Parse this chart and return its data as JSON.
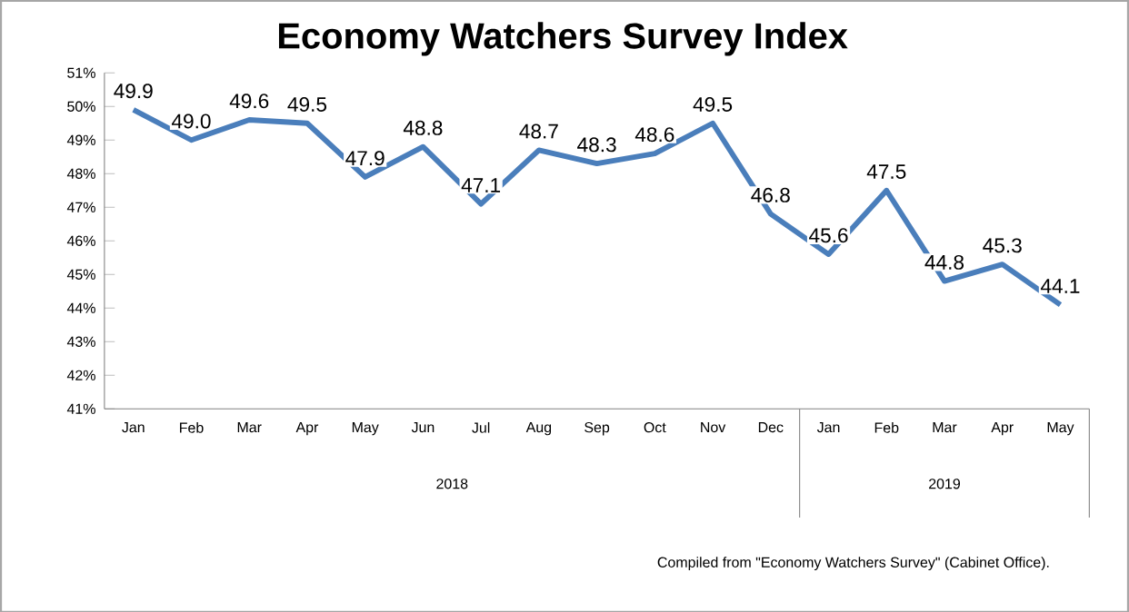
{
  "chart_data": {
    "type": "line",
    "title": "Economy Watchers Survey Index",
    "categories": [
      "Jan",
      "Feb",
      "Mar",
      "Apr",
      "May",
      "Jun",
      "Jul",
      "Aug",
      "Sep",
      "Oct",
      "Nov",
      "Dec",
      "Jan",
      "Feb",
      "Mar",
      "Apr",
      "May"
    ],
    "values": [
      49.9,
      49.0,
      49.6,
      49.5,
      47.9,
      48.8,
      47.1,
      48.7,
      48.3,
      48.6,
      49.5,
      46.8,
      45.6,
      47.5,
      44.8,
      45.3,
      44.1
    ],
    "color": "#4a7ebb",
    "ylim": [
      41,
      51
    ],
    "yticks": [
      {
        "value": 41,
        "label": "41%"
      },
      {
        "value": 42,
        "label": "42%"
      },
      {
        "value": 43,
        "label": "43%"
      },
      {
        "value": 44,
        "label": "44%"
      },
      {
        "value": 45,
        "label": "45%"
      },
      {
        "value": 46,
        "label": "46%"
      },
      {
        "value": 47,
        "label": "47%"
      },
      {
        "value": 48,
        "label": "48%"
      },
      {
        "value": 49,
        "label": "49%"
      },
      {
        "value": 50,
        "label": "50%"
      },
      {
        "value": 51,
        "label": "51%"
      }
    ],
    "value_labels": [
      "49.9",
      "49.0",
      "49.6",
      "49.5",
      "47.9",
      "48.8",
      "47.1",
      "48.7",
      "48.3",
      "48.6",
      "49.5",
      "46.8",
      "45.6",
      "47.5",
      "44.8",
      "45.3",
      "44.1"
    ],
    "annotations": [
      "2018",
      "2019",
      "Compiled from \"Economy Watchers Survey\" (Cabinet Office)."
    ]
  }
}
